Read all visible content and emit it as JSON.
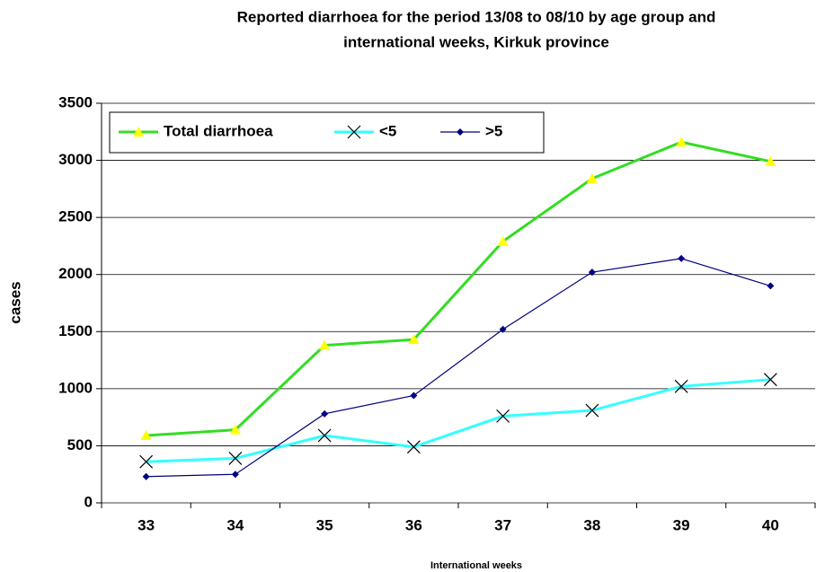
{
  "chart_data": {
    "type": "line",
    "title": [
      "Reported diarrhoea for the period 13/08 to 08/10 by age group and",
      "international weeks, Kirkuk province"
    ],
    "x_label": "International weeks",
    "y_label": "cases",
    "categories": [
      "33",
      "34",
      "35",
      "36",
      "37",
      "38",
      "39",
      "40"
    ],
    "series": [
      {
        "name": "Total diarrhoea",
        "color": "#33dd22",
        "marker": "triangle",
        "marker_color": "#ffff00",
        "values": [
          590,
          640,
          1380,
          1430,
          2290,
          2840,
          3160,
          2990
        ]
      },
      {
        "name": "<5",
        "color": "#33ffff",
        "marker": "x",
        "marker_color": "#000000",
        "values": [
          360,
          390,
          590,
          490,
          760,
          810,
          1020,
          1080
        ]
      },
      {
        "name": ">5",
        "color": "#000080",
        "marker": "diamond",
        "marker_color": "#000080",
        "values": [
          230,
          250,
          780,
          940,
          1520,
          2020,
          2140,
          1900
        ]
      }
    ],
    "ylim": [
      0,
      3500
    ],
    "yticks": [
      0,
      500,
      1000,
      1500,
      2000,
      2500,
      3000,
      3500
    ],
    "grid": true,
    "legend": "top-left"
  }
}
